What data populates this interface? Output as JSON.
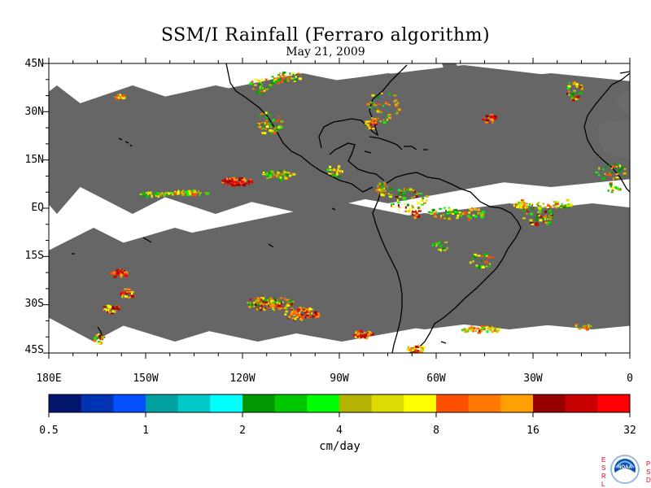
{
  "title": "SSM/I Rainfall (Ferraro algorithm)",
  "date": "May 21, 2009",
  "lat_labels": [
    "45N",
    "30N",
    "15N",
    "EQ",
    "15S",
    "30S",
    "45S"
  ],
  "lon_labels": [
    "180E",
    "150W",
    "120W",
    "90W",
    "60W",
    "30W",
    "0"
  ],
  "colorbar": {
    "units": "cm/day",
    "tick_labels": [
      "0.5",
      "1",
      "2",
      "4",
      "8",
      "16",
      "32"
    ],
    "colors": [
      "#00156b",
      "#0032b4",
      "#0050ff",
      "#00a0a0",
      "#00c8c8",
      "#00ffff",
      "#009600",
      "#00c800",
      "#00ff00",
      "#b4b400",
      "#dcdc00",
      "#ffff00",
      "#ff5000",
      "#ff7800",
      "#ffa000",
      "#960000",
      "#c80000",
      "#ff0000"
    ]
  },
  "swath_gap_color": "#666666",
  "logo": {
    "text": "NOAA",
    "left_letters": [
      "E",
      "S",
      "R",
      "L"
    ],
    "right_letters": [
      "P",
      "S",
      "D"
    ]
  }
}
